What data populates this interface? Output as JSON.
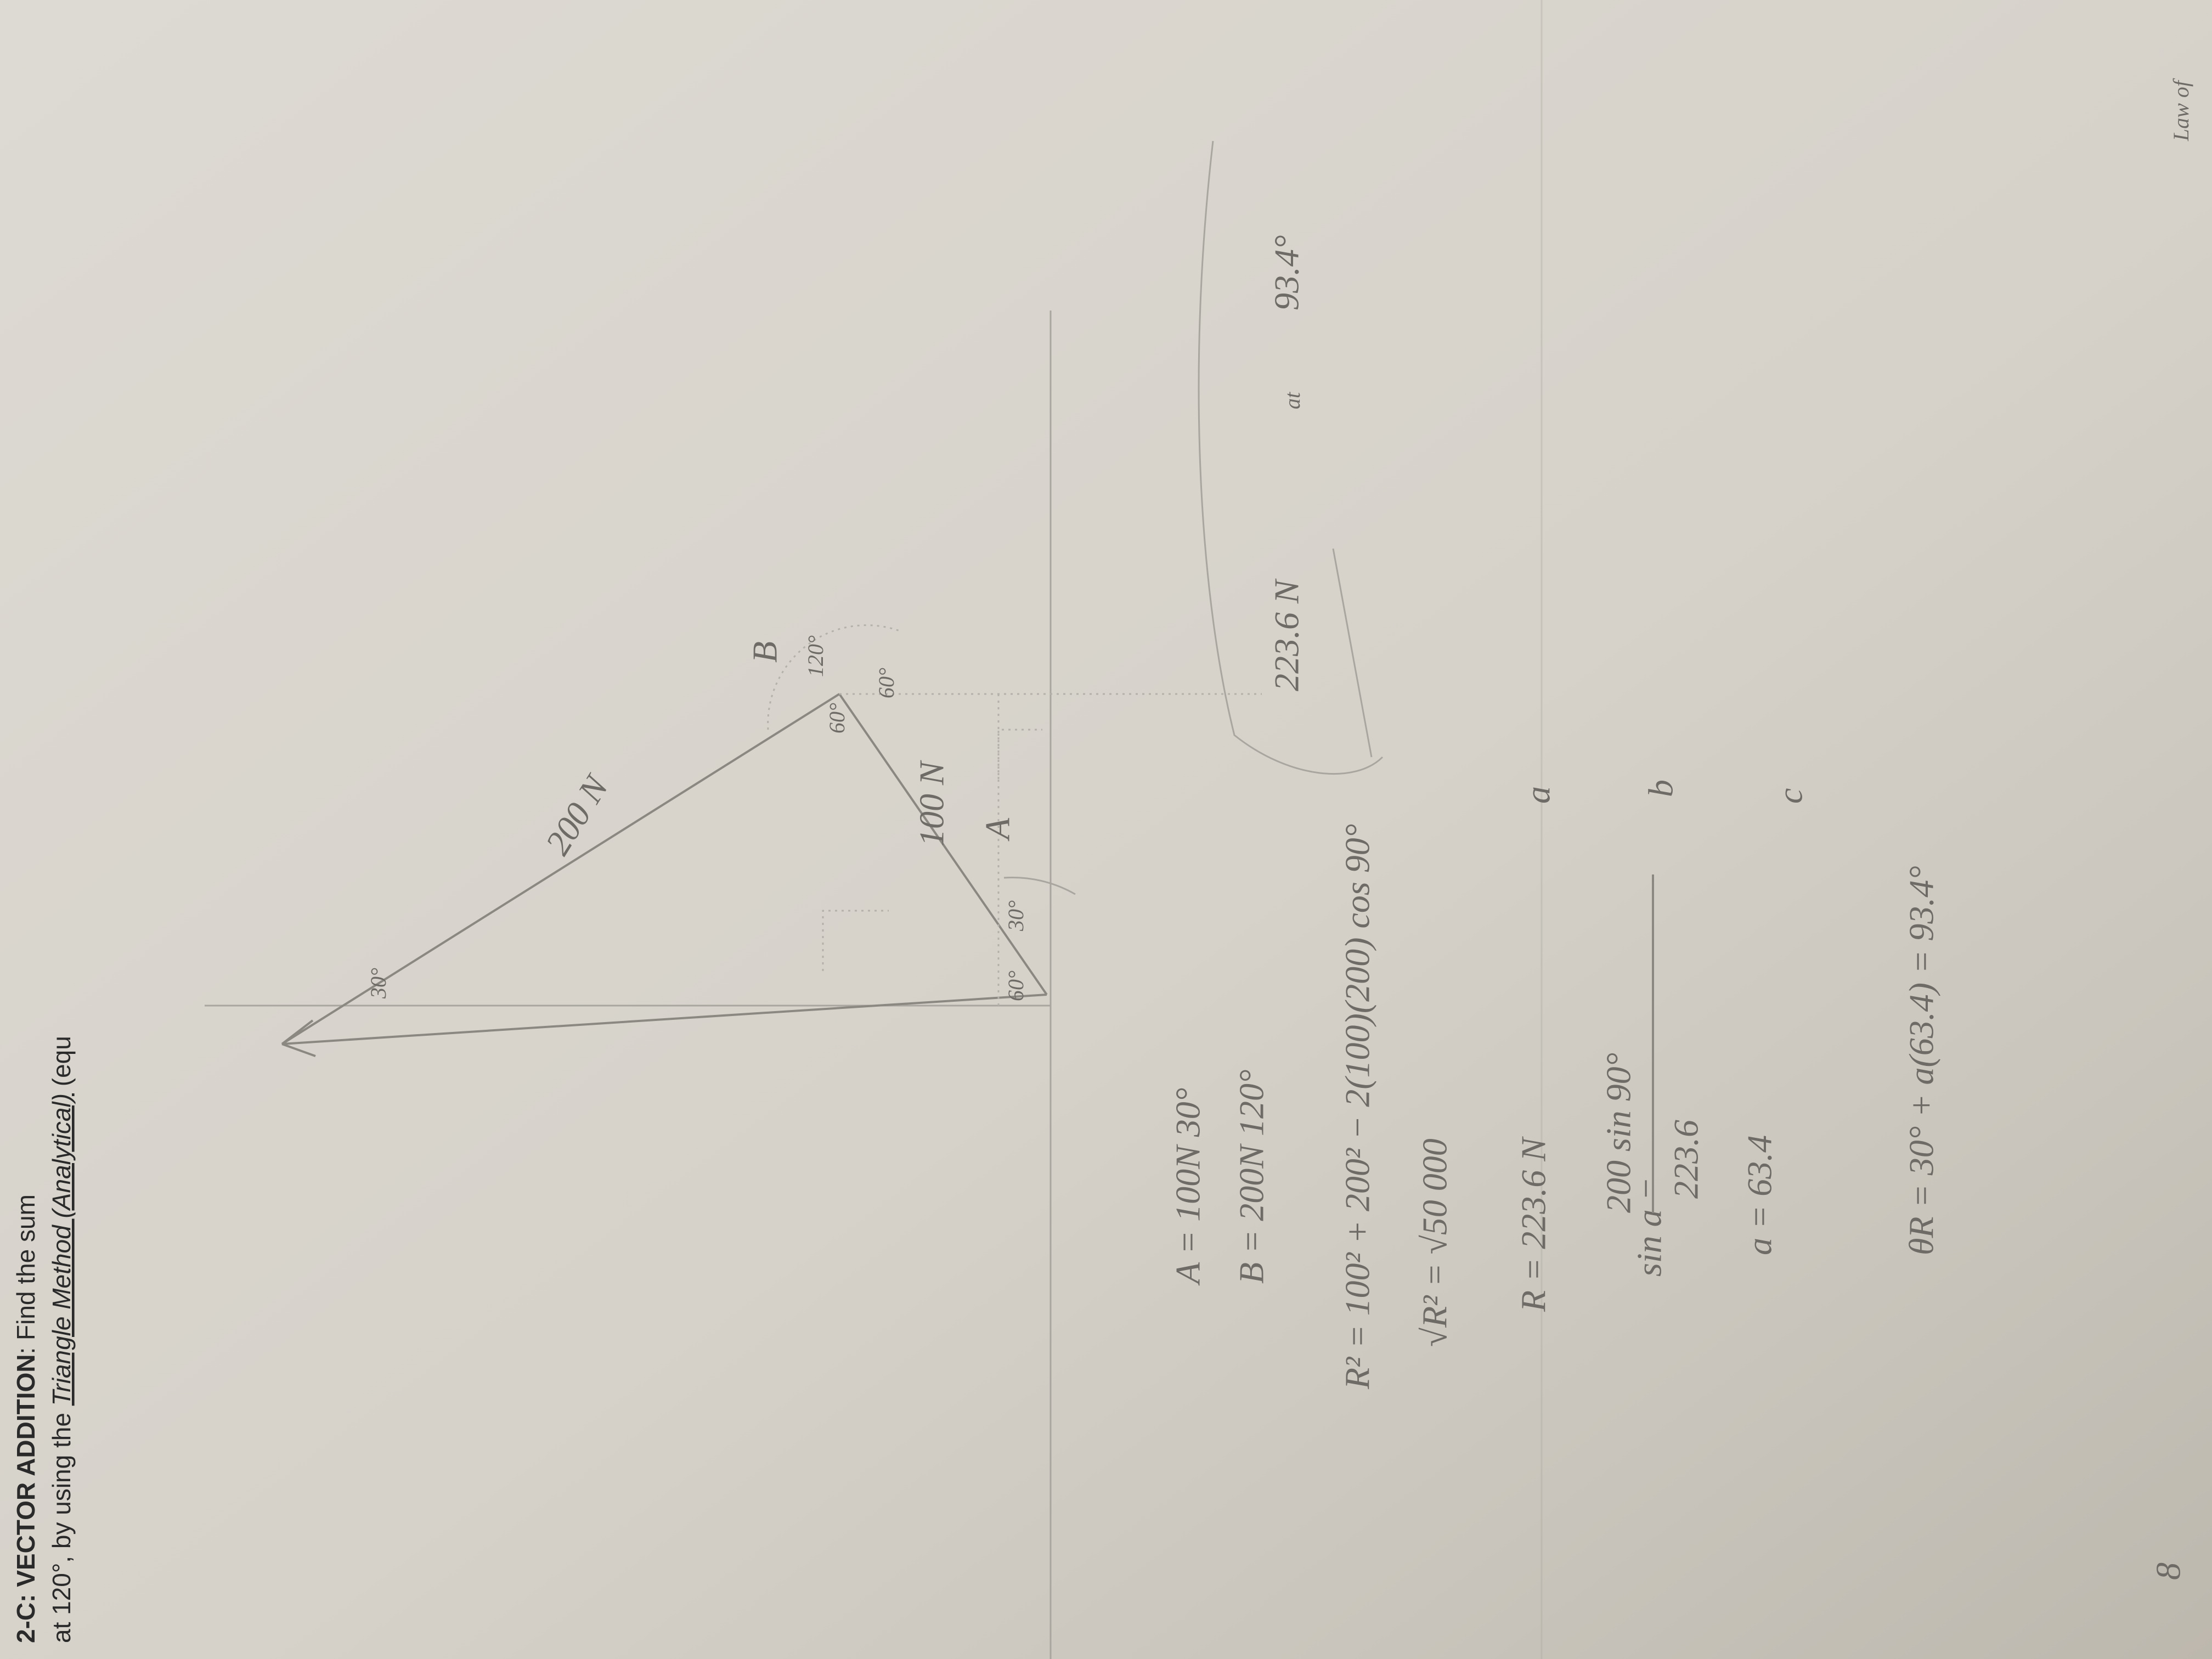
{
  "header": {
    "title": "2-C: VECTOR ADDITION",
    "line1_rest": ": Find the sum",
    "line2_start": "at 120°, by using the ",
    "method": "Triangle Method (Analytical)",
    "line2_end": " (equ"
  },
  "margin_note": "Law of",
  "given": [
    "A = 100N   30°",
    "B = 200N   120°"
  ],
  "work": {
    "law_of_cosines": "R² = 100² + 200² − 2(100)(200) cos 90°",
    "root": "√R² = √50 000",
    "resultant": "R = 223.6 N",
    "sine_left": "sin a =",
    "sine_numerator": "200 sin 90°",
    "sine_denominator": "223.6",
    "angle_a": "a = 63.4",
    "direction": "θR = 30° + a(63.4) = 93.4°"
  },
  "step_labels": [
    "a",
    "b",
    "c"
  ],
  "answer": {
    "magnitude": "223.6 N",
    "at": "at",
    "angle": "93.4°"
  },
  "diagram": {
    "labels": [
      "200 N",
      "100 N",
      "A",
      "B",
      "30°",
      "60°",
      "120°",
      "60°",
      "30°",
      "60°"
    ]
  },
  "page_number": "8"
}
